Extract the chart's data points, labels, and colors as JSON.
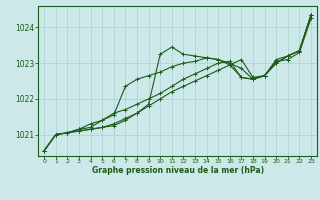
{
  "xlabel": "Graphe pression niveau de la mer (hPa)",
  "xlim": [
    -0.5,
    23.5
  ],
  "ylim": [
    1020.4,
    1024.6
  ],
  "yticks": [
    1021,
    1022,
    1023,
    1024
  ],
  "xticks": [
    0,
    1,
    2,
    3,
    4,
    5,
    6,
    7,
    8,
    9,
    10,
    11,
    12,
    13,
    14,
    15,
    16,
    17,
    18,
    19,
    20,
    21,
    22,
    23
  ],
  "bg_color": "#cce8e8",
  "grid_color": "#aacfcf",
  "dark_green": "#1a5c1a",
  "curves": [
    {
      "y": [
        1020.55,
        1021.0,
        1021.05,
        1021.1,
        1021.15,
        1021.2,
        1021.25,
        1021.4,
        1021.6,
        1021.8,
        1022.0,
        1022.2,
        1022.35,
        1022.5,
        1022.65,
        1022.8,
        1022.95,
        1023.1,
        1022.6,
        1022.65,
        1023.05,
        1023.1,
        1023.3,
        1024.25
      ]
    },
    {
      "y": [
        1020.55,
        1021.0,
        1021.05,
        1021.1,
        1021.15,
        1021.2,
        1021.3,
        1021.45,
        1021.6,
        1021.85,
        1023.25,
        1023.45,
        1023.25,
        1023.2,
        1023.15,
        1023.1,
        1023.0,
        1022.85,
        1022.55,
        1022.65,
        1023.1,
        1023.2,
        1023.35,
        1024.35
      ]
    },
    {
      "y": [
        1020.55,
        1021.0,
        1021.05,
        1021.15,
        1021.2,
        1021.4,
        1021.55,
        1022.35,
        1022.55,
        1022.65,
        1022.75,
        1022.9,
        1023.0,
        1023.05,
        1023.15,
        1023.1,
        1022.95,
        1022.6,
        1022.55,
        1022.65,
        1023.0,
        1023.2,
        1023.35,
        1024.35
      ]
    },
    {
      "y": [
        1020.55,
        1021.0,
        1021.05,
        1021.15,
        1021.3,
        1021.4,
        1021.6,
        1021.7,
        1021.85,
        1022.0,
        1022.15,
        1022.35,
        1022.55,
        1022.7,
        1022.85,
        1023.0,
        1023.05,
        1022.6,
        1022.55,
        1022.65,
        1023.0,
        1023.2,
        1023.35,
        1024.35
      ]
    }
  ]
}
